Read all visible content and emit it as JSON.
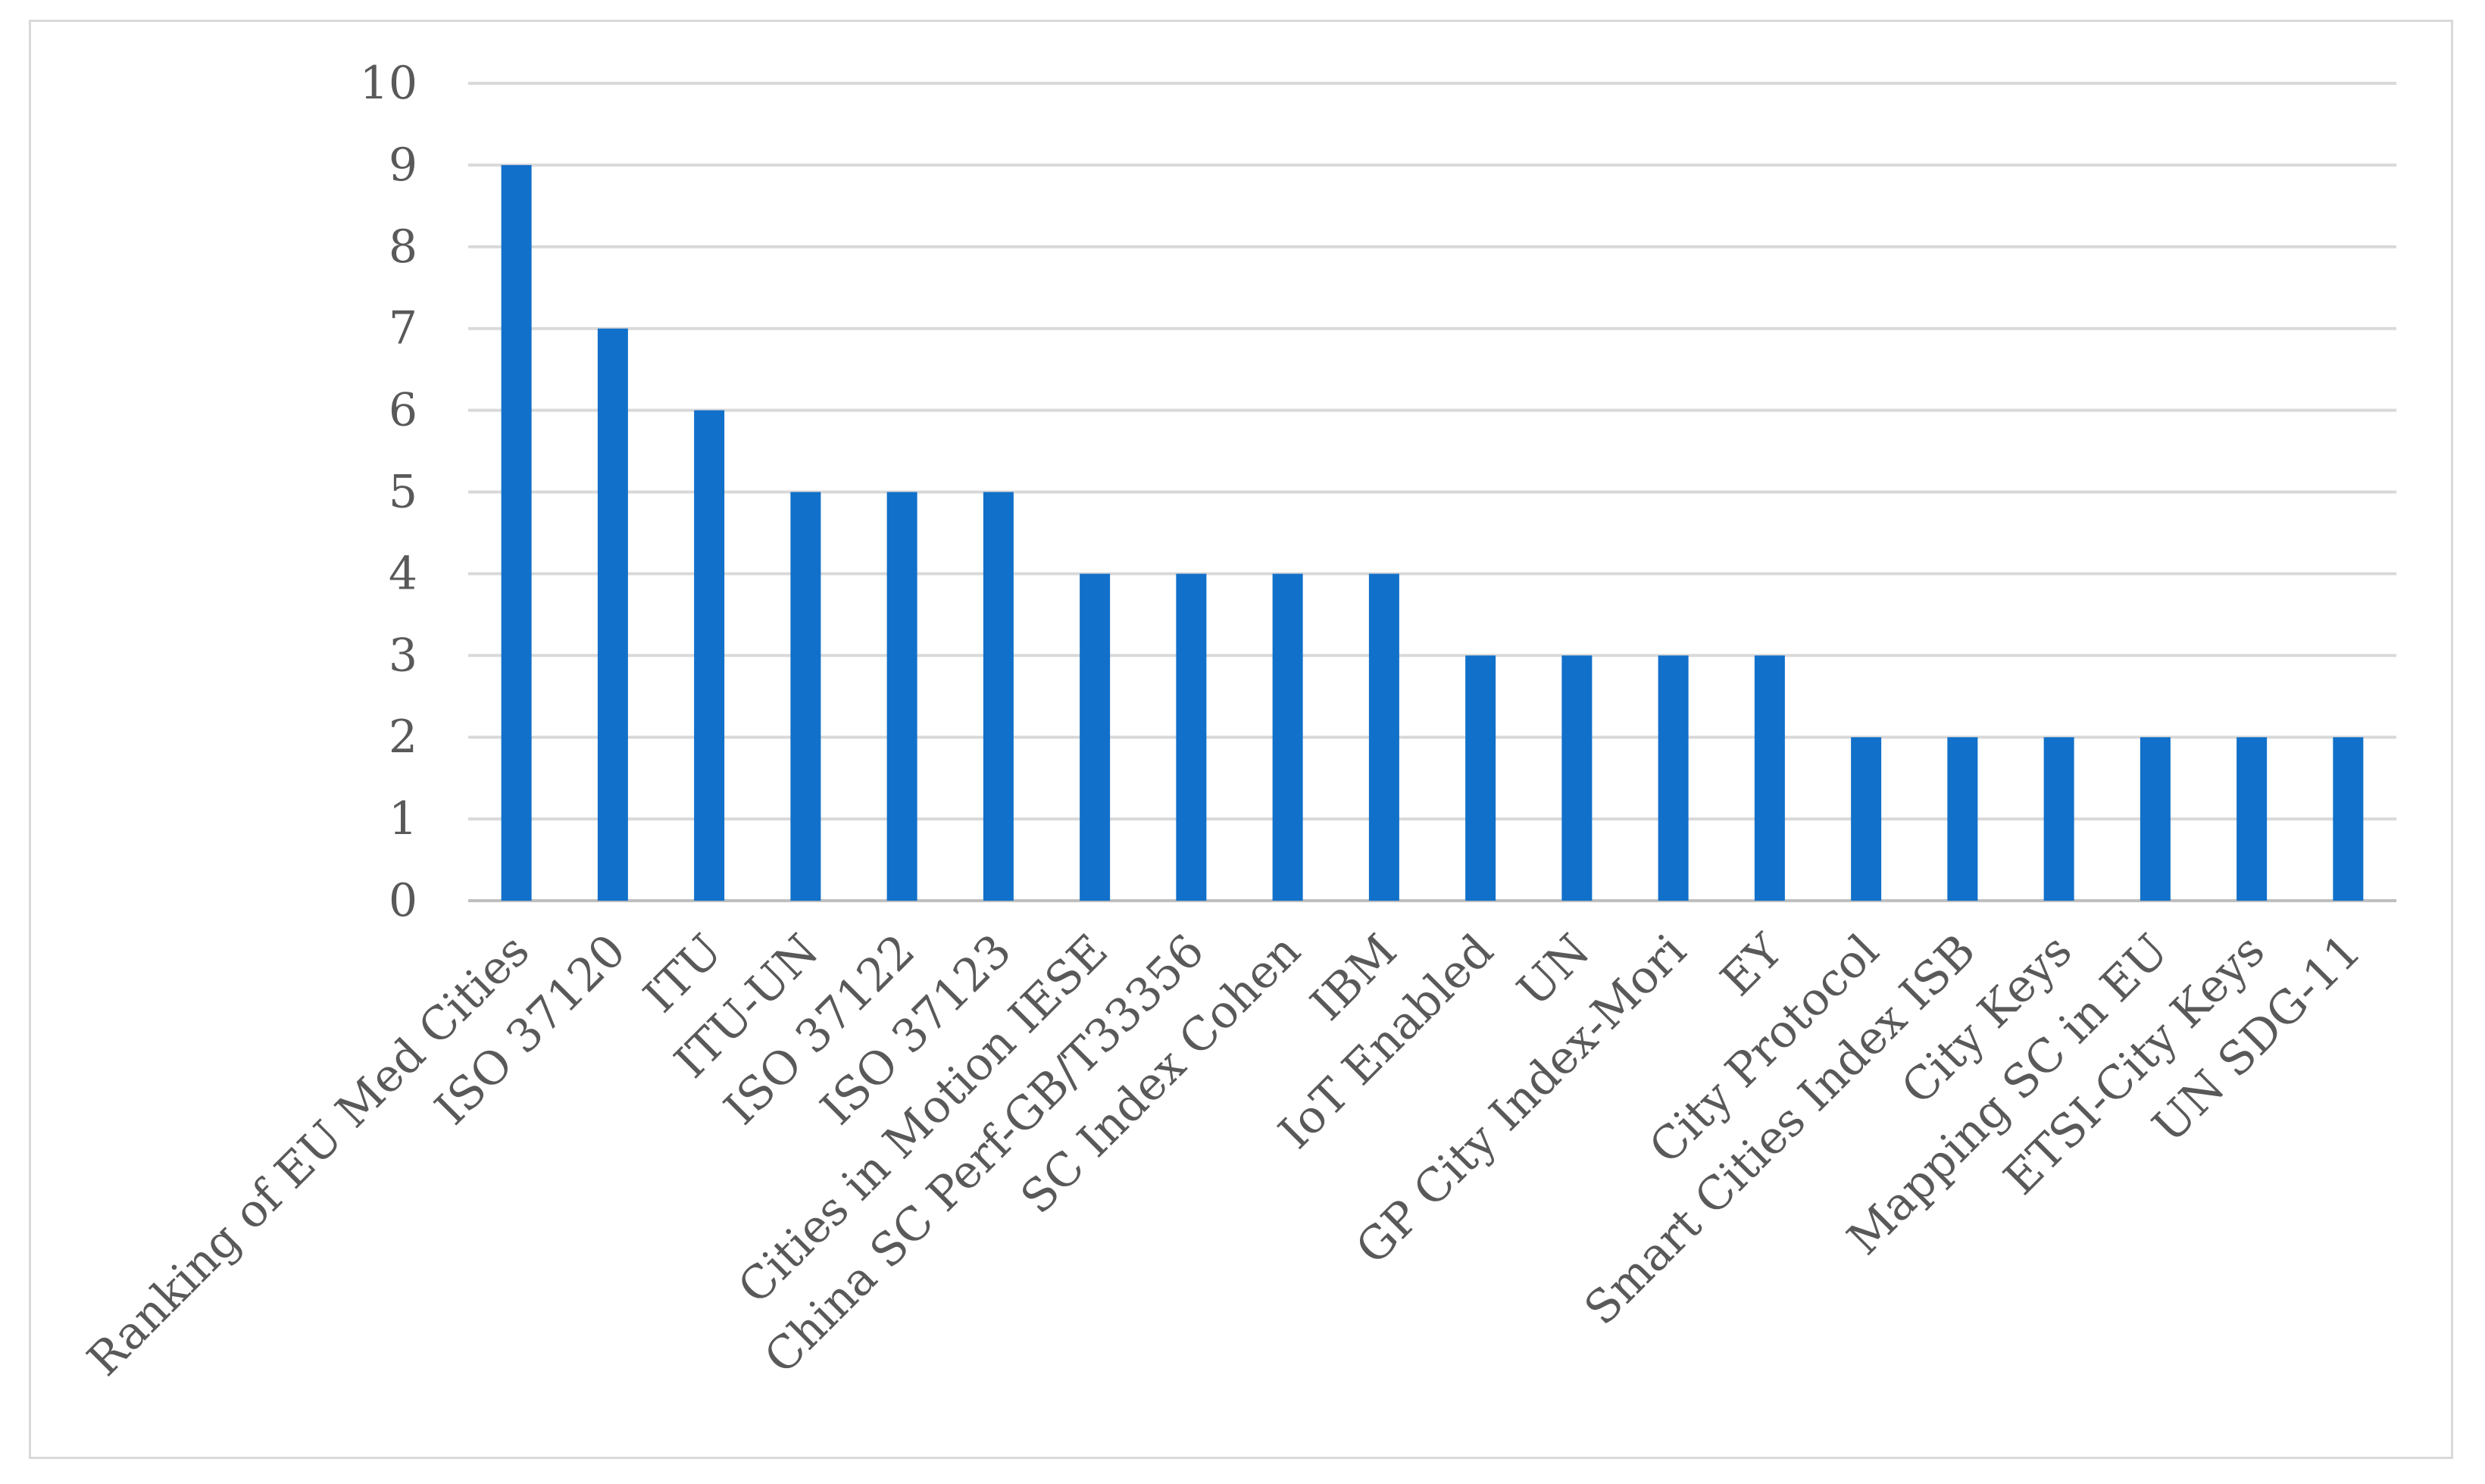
{
  "chart_data": {
    "type": "bar",
    "title": "",
    "xlabel": "",
    "ylabel": "",
    "ylim": [
      0,
      10
    ],
    "yticks": [
      0,
      1,
      2,
      3,
      4,
      5,
      6,
      7,
      8,
      9,
      10
    ],
    "grid": true,
    "legend": "none",
    "bar_color": "#1170C9",
    "categories": [
      "Ranking of EU Med Cities",
      "ISO 37120",
      "ITU",
      "ITU-UN",
      "ISO 37122",
      "ISO 37123",
      "Cities in Motion IESE",
      "China SC Perf-GB/T33356",
      "SC Index Cohen",
      "IBM",
      "IoT Enabled",
      "UN",
      "GP City Index-Mori",
      "EY",
      "City Protocol",
      "Smart Cities Index ISB",
      "City Keys",
      "Mapping SC in EU",
      "ETSI-City Keys",
      "UN SDG-11"
    ],
    "values": [
      9,
      7,
      6,
      5,
      5,
      5,
      4,
      4,
      4,
      4,
      3,
      3,
      3,
      3,
      2,
      2,
      2,
      2,
      2,
      2
    ]
  }
}
